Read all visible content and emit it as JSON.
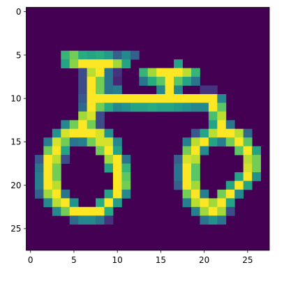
{
  "chart_data": {
    "type": "heatmap",
    "title": "",
    "xlabel": "",
    "ylabel": "",
    "colormap": "viridis",
    "value_range": [
      0,
      255
    ],
    "rows": 28,
    "cols": 28,
    "xlim": [
      -0.5,
      27.5
    ],
    "ylim": [
      27.5,
      -0.5
    ],
    "grid": false,
    "x_ticks": [
      0,
      5,
      10,
      15,
      20,
      25
    ],
    "y_ticks": [
      0,
      5,
      10,
      15,
      20,
      25
    ],
    "x_tick_labels": [
      "0",
      "5",
      "10",
      "15",
      "20",
      "25"
    ],
    "y_tick_labels": [
      "0",
      "5",
      "10",
      "15",
      "20",
      "25"
    ],
    "bright_pixels": [
      [
        5,
        4,
        170
      ],
      [
        5,
        5,
        200
      ],
      [
        5,
        6,
        160
      ],
      [
        5,
        7,
        150
      ],
      [
        5,
        8,
        160
      ],
      [
        5,
        9,
        140
      ],
      [
        5,
        10,
        80
      ],
      [
        5,
        11,
        120
      ],
      [
        5,
        12,
        80
      ],
      [
        6,
        4,
        150
      ],
      [
        6,
        5,
        210
      ],
      [
        6,
        6,
        255
      ],
      [
        6,
        7,
        255
      ],
      [
        6,
        8,
        255
      ],
      [
        6,
        9,
        255
      ],
      [
        6,
        10,
        220
      ],
      [
        6,
        11,
        150
      ],
      [
        6,
        17,
        150
      ],
      [
        7,
        6,
        60
      ],
      [
        7,
        7,
        230
      ],
      [
        7,
        8,
        255
      ],
      [
        7,
        9,
        100
      ],
      [
        7,
        10,
        40
      ],
      [
        7,
        13,
        170
      ],
      [
        7,
        14,
        220
      ],
      [
        7,
        15,
        255
      ],
      [
        7,
        16,
        255
      ],
      [
        7,
        17,
        255
      ],
      [
        7,
        18,
        230
      ],
      [
        7,
        19,
        170
      ],
      [
        8,
        6,
        60
      ],
      [
        8,
        7,
        255
      ],
      [
        8,
        8,
        200
      ],
      [
        8,
        9,
        100
      ],
      [
        8,
        10,
        30
      ],
      [
        8,
        13,
        100
      ],
      [
        8,
        14,
        160
      ],
      [
        8,
        15,
        190
      ],
      [
        8,
        16,
        255
      ],
      [
        8,
        17,
        190
      ],
      [
        8,
        18,
        150
      ],
      [
        8,
        19,
        100
      ],
      [
        9,
        6,
        60
      ],
      [
        9,
        7,
        255
      ],
      [
        9,
        8,
        200
      ],
      [
        9,
        9,
        100
      ],
      [
        9,
        10,
        110
      ],
      [
        9,
        15,
        120
      ],
      [
        9,
        16,
        255
      ],
      [
        9,
        17,
        120
      ],
      [
        9,
        20,
        40
      ],
      [
        9,
        21,
        40
      ],
      [
        10,
        6,
        70
      ],
      [
        10,
        7,
        255
      ],
      [
        10,
        8,
        255
      ],
      [
        10,
        9,
        255
      ],
      [
        10,
        10,
        255
      ],
      [
        10,
        11,
        255
      ],
      [
        10,
        12,
        255
      ],
      [
        10,
        13,
        255
      ],
      [
        10,
        14,
        255
      ],
      [
        10,
        15,
        255
      ],
      [
        10,
        16,
        255
      ],
      [
        10,
        17,
        255
      ],
      [
        10,
        18,
        255
      ],
      [
        10,
        19,
        255
      ],
      [
        10,
        20,
        255
      ],
      [
        10,
        21,
        255
      ],
      [
        10,
        22,
        120
      ],
      [
        11,
        6,
        90
      ],
      [
        11,
        7,
        255
      ],
      [
        11,
        8,
        200
      ],
      [
        11,
        9,
        160
      ],
      [
        11,
        10,
        120
      ],
      [
        11,
        11,
        130
      ],
      [
        11,
        12,
        150
      ],
      [
        11,
        13,
        150
      ],
      [
        11,
        14,
        160
      ],
      [
        11,
        15,
        150
      ],
      [
        11,
        16,
        150
      ],
      [
        11,
        17,
        140
      ],
      [
        11,
        18,
        130
      ],
      [
        11,
        19,
        120
      ],
      [
        11,
        20,
        120
      ],
      [
        11,
        21,
        255
      ],
      [
        11,
        22,
        190
      ],
      [
        12,
        6,
        220
      ],
      [
        12,
        7,
        240
      ],
      [
        12,
        8,
        60
      ],
      [
        12,
        21,
        180
      ],
      [
        12,
        22,
        230
      ],
      [
        13,
        4,
        120
      ],
      [
        13,
        5,
        200
      ],
      [
        13,
        6,
        255
      ],
      [
        13,
        7,
        200
      ],
      [
        13,
        8,
        60
      ],
      [
        13,
        21,
        150
      ],
      [
        13,
        22,
        255
      ],
      [
        13,
        23,
        100
      ],
      [
        14,
        3,
        130
      ],
      [
        14,
        4,
        240
      ],
      [
        14,
        5,
        255
      ],
      [
        14,
        6,
        255
      ],
      [
        14,
        7,
        255
      ],
      [
        14,
        8,
        240
      ],
      [
        14,
        9,
        130
      ],
      [
        14,
        19,
        70
      ],
      [
        14,
        20,
        150
      ],
      [
        14,
        21,
        230
      ],
      [
        14,
        22,
        255
      ],
      [
        14,
        23,
        255
      ],
      [
        14,
        24,
        230
      ],
      [
        14,
        25,
        90
      ],
      [
        15,
        2,
        110
      ],
      [
        15,
        3,
        240
      ],
      [
        15,
        4,
        200
      ],
      [
        15,
        5,
        100
      ],
      [
        15,
        6,
        110
      ],
      [
        15,
        7,
        200
      ],
      [
        15,
        8,
        240
      ],
      [
        15,
        9,
        240
      ],
      [
        15,
        10,
        120
      ],
      [
        15,
        18,
        110
      ],
      [
        15,
        19,
        230
      ],
      [
        15,
        20,
        255
      ],
      [
        15,
        21,
        150
      ],
      [
        15,
        22,
        110
      ],
      [
        15,
        23,
        200
      ],
      [
        15,
        24,
        255
      ],
      [
        15,
        25,
        190
      ],
      [
        16,
        2,
        200
      ],
      [
        16,
        3,
        255
      ],
      [
        16,
        4,
        150
      ],
      [
        16,
        8,
        200
      ],
      [
        16,
        9,
        255
      ],
      [
        16,
        10,
        150
      ],
      [
        16,
        18,
        200
      ],
      [
        16,
        19,
        255
      ],
      [
        16,
        20,
        120
      ],
      [
        16,
        24,
        190
      ],
      [
        16,
        25,
        255
      ],
      [
        16,
        26,
        150
      ],
      [
        17,
        1,
        70
      ],
      [
        17,
        2,
        255
      ],
      [
        17,
        3,
        230
      ],
      [
        17,
        4,
        60
      ],
      [
        17,
        9,
        220
      ],
      [
        17,
        10,
        255
      ],
      [
        17,
        11,
        100
      ],
      [
        17,
        17,
        80
      ],
      [
        17,
        18,
        240
      ],
      [
        17,
        19,
        230
      ],
      [
        17,
        25,
        230
      ],
      [
        17,
        26,
        200
      ],
      [
        18,
        1,
        100
      ],
      [
        18,
        2,
        255
      ],
      [
        18,
        3,
        200
      ],
      [
        18,
        9,
        150
      ],
      [
        18,
        10,
        255
      ],
      [
        18,
        11,
        170
      ],
      [
        18,
        17,
        100
      ],
      [
        18,
        18,
        255
      ],
      [
        18,
        19,
        190
      ],
      [
        18,
        25,
        240
      ],
      [
        18,
        26,
        200
      ],
      [
        19,
        1,
        110
      ],
      [
        19,
        2,
        255
      ],
      [
        19,
        3,
        200
      ],
      [
        19,
        10,
        255
      ],
      [
        19,
        11,
        190
      ],
      [
        19,
        17,
        100
      ],
      [
        19,
        18,
        255
      ],
      [
        19,
        19,
        190
      ],
      [
        19,
        24,
        150
      ],
      [
        19,
        25,
        255
      ],
      [
        19,
        26,
        130
      ],
      [
        20,
        1,
        110
      ],
      [
        20,
        2,
        255
      ],
      [
        20,
        3,
        230
      ],
      [
        20,
        10,
        255
      ],
      [
        20,
        11,
        200
      ],
      [
        20,
        17,
        80
      ],
      [
        20,
        18,
        255
      ],
      [
        20,
        19,
        220
      ],
      [
        20,
        23,
        150
      ],
      [
        20,
        24,
        255
      ],
      [
        20,
        25,
        150
      ],
      [
        21,
        1,
        80
      ],
      [
        21,
        2,
        220
      ],
      [
        21,
        3,
        255
      ],
      [
        21,
        4,
        100
      ],
      [
        21,
        9,
        150
      ],
      [
        21,
        10,
        255
      ],
      [
        21,
        11,
        120
      ],
      [
        21,
        18,
        200
      ],
      [
        21,
        19,
        255
      ],
      [
        21,
        20,
        110
      ],
      [
        21,
        22,
        200
      ],
      [
        21,
        23,
        255
      ],
      [
        21,
        24,
        120
      ],
      [
        22,
        2,
        120
      ],
      [
        22,
        3,
        230
      ],
      [
        22,
        4,
        255
      ],
      [
        22,
        5,
        130
      ],
      [
        22,
        8,
        160
      ],
      [
        22,
        9,
        255
      ],
      [
        22,
        10,
        140
      ],
      [
        22,
        18,
        110
      ],
      [
        22,
        19,
        230
      ],
      [
        22,
        20,
        255
      ],
      [
        22,
        21,
        220
      ],
      [
        22,
        22,
        255
      ],
      [
        22,
        23,
        150
      ],
      [
        23,
        3,
        120
      ],
      [
        23,
        4,
        200
      ],
      [
        23,
        5,
        255
      ],
      [
        23,
        6,
        255
      ],
      [
        23,
        7,
        255
      ],
      [
        23,
        8,
        255
      ],
      [
        23,
        9,
        160
      ],
      [
        23,
        19,
        110
      ],
      [
        23,
        20,
        220
      ],
      [
        23,
        21,
        255
      ],
      [
        23,
        22,
        220
      ],
      [
        23,
        23,
        60
      ],
      [
        24,
        5,
        90
      ],
      [
        24,
        6,
        120
      ],
      [
        24,
        7,
        120
      ],
      [
        24,
        8,
        100
      ],
      [
        24,
        9,
        40
      ],
      [
        24,
        20,
        100
      ],
      [
        24,
        21,
        130
      ],
      [
        24,
        22,
        100
      ]
    ]
  }
}
